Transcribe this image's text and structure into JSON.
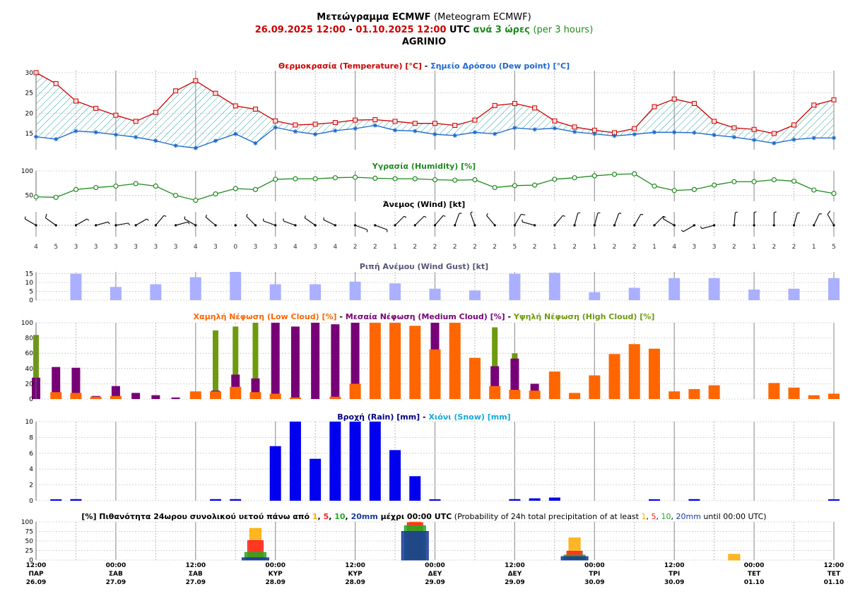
{
  "header": {
    "title_bold": "Μετεώγραμμα ECMWF",
    "title_plain": "(Meteogram ECMWF)",
    "date_from": "26.09.2025 12:00",
    "date_sep": "-",
    "date_to": "01.10.2025 12:00",
    "utc": "UTC",
    "step_gr": "ανά 3 ώρες",
    "step_en": "(per 3 hours)",
    "location": "AGRINIO"
  },
  "colors": {
    "temp": "#cc0000",
    "dew": "#1a66cc",
    "humidity": "#1f8a1f",
    "gust": "#aab0ff",
    "low_cloud": "#ff6600",
    "med_cloud": "#770077",
    "high_cloud": "#6e9a0f",
    "rain": "#0000ee",
    "snow": "#11aadd",
    "title_gray": "#555577",
    "p1": "#ffaa00",
    "p5": "#ff2222",
    "p10": "#22aa22",
    "p20": "#1a3a99"
  },
  "chart_data": [
    {
      "type": "line",
      "title_parts": [
        {
          "text": "Θερμοκρασία (Temperature) [°C]",
          "color": "#cc0000"
        },
        {
          "text": " - ",
          "color": "#000000"
        },
        {
          "text": "Σημείο Δρόσου (Dew point) [°C]",
          "color": "#1a66cc"
        }
      ],
      "ylim": [
        11,
        30.5
      ],
      "ticks": [
        15,
        20,
        25,
        30
      ],
      "series": [
        {
          "name": "Θερμοκρασία (Temperature) [°C]",
          "values": [
            30,
            27.3,
            23,
            21.2,
            19.5,
            18,
            20.2,
            25.5,
            28,
            24.9,
            21.8,
            21,
            18.1,
            17.1,
            17.3,
            17.7,
            18.3,
            18.4,
            18,
            17.5,
            17.5,
            17,
            18.3,
            21.9,
            22.4,
            21.3,
            18.1,
            16.6,
            15.8,
            15.2,
            16.2,
            21.6,
            23.5,
            22.4,
            18,
            16.4,
            16,
            15,
            17.1,
            22,
            23.3
          ]
        },
        {
          "name": "Σημείο Δρόσου (Dew point) [°C]",
          "values": [
            14.2,
            13.6,
            15.6,
            15.3,
            14.7,
            14.1,
            13.2,
            12,
            11.4,
            13.2,
            14.9,
            12.6,
            16.5,
            15.5,
            14.8,
            15.7,
            16.2,
            17,
            15.8,
            15.6,
            14.8,
            14.5,
            15.3,
            14.9,
            16.4,
            16,
            16.3,
            15.4,
            14.9,
            14.4,
            14.8,
            15.3,
            15.3,
            15.2,
            14.6,
            14.1,
            13.4,
            12.6,
            13.5,
            13.9,
            13.9
          ]
        }
      ]
    },
    {
      "type": "line",
      "title_parts": [
        {
          "text": "Υγρασία (Humidity) [%]",
          "color": "#1f8a1f"
        }
      ],
      "ylim": [
        38,
        100
      ],
      "ticks": [
        50,
        100
      ],
      "series": [
        {
          "name": "Υγρασία (Humidity) [%]",
          "values": [
            47,
            46,
            62,
            66,
            69,
            74,
            69,
            50,
            40,
            53,
            64,
            62,
            83,
            84,
            84,
            86,
            87,
            85,
            84,
            84,
            82,
            81,
            82,
            66,
            70,
            71,
            83,
            86,
            90,
            93,
            94,
            69,
            60,
            62,
            71,
            78,
            78,
            82,
            79,
            61,
            54
          ]
        }
      ]
    },
    {
      "type": "wind",
      "title_parts": [
        {
          "text": "Άνεμος (Wind) [kt]",
          "color": "#000000"
        }
      ],
      "speed_labels": [
        "4",
        "5",
        "3",
        "3",
        "3",
        "3",
        "3",
        "3",
        "4",
        "3",
        "0",
        "3",
        "3",
        "4",
        "3",
        "4",
        "2",
        "2",
        "1",
        "2",
        "2",
        "2",
        "2",
        "2",
        "5",
        "2",
        "1",
        "2",
        "1",
        "2",
        "2",
        "1",
        "4",
        "3",
        "3",
        "2",
        "1",
        "2",
        "2",
        "1",
        "5"
      ],
      "directions_deg": [
        300,
        305,
        60,
        75,
        80,
        60,
        40,
        75,
        300,
        310,
        0,
        315,
        290,
        290,
        305,
        295,
        110,
        110,
        45,
        45,
        40,
        20,
        340,
        320,
        30,
        285,
        40,
        15,
        15,
        20,
        30,
        45,
        300,
        240,
        255,
        5,
        0,
        0,
        15,
        25,
        330
      ]
    },
    {
      "type": "bar",
      "title_parts": [
        {
          "text": "Ριπή Ανέμου (Wind Gust) [kt]",
          "color": "#555577"
        }
      ],
      "ylim": [
        0,
        16
      ],
      "ticks": [
        0,
        5,
        10,
        15
      ],
      "series": [
        {
          "name": "Ριπή Ανέμου (Wind Gust) [kt]",
          "values": [
            15,
            7.5,
            9,
            13,
            16,
            9,
            9,
            10.5,
            9.5,
            6.5,
            5.5,
            15,
            15.5,
            4.5,
            7,
            12.5,
            12.5,
            6,
            6.5,
            12.5
          ]
        }
      ]
    },
    {
      "type": "bar",
      "title_parts": [
        {
          "text": "Χαμηλή Νέφωση (Low Cloud) [%]",
          "color": "#ff6600"
        },
        {
          "text": " - ",
          "color": "#000000"
        },
        {
          "text": "Μεσαία Νέφωση (Medium Cloud) [%]",
          "color": "#770077"
        },
        {
          "text": " - ",
          "color": "#000000"
        },
        {
          "text": "Υψηλή Νέφωση (High Cloud) [%]",
          "color": "#6e9a0f"
        }
      ],
      "ylim": [
        0,
        100
      ],
      "ticks": [
        0,
        20,
        40,
        60,
        80,
        100
      ],
      "series": [
        {
          "name": "Υψηλή Νέφωση (High Cloud) [%]",
          "values": [
            84,
            0,
            0,
            0,
            0,
            0,
            0,
            0,
            0,
            90,
            95,
            100,
            100,
            0,
            0,
            0,
            0,
            0,
            0,
            0,
            0,
            0,
            0,
            94,
            60,
            0,
            0,
            0,
            0,
            0,
            0,
            0,
            0,
            0,
            0,
            0,
            0,
            0,
            0,
            0,
            0
          ]
        },
        {
          "name": "Μεσαία Νέφωση (Medium Cloud) [%]",
          "values": [
            28,
            42,
            41,
            4,
            17,
            8,
            5,
            2,
            0,
            11,
            32,
            27,
            100,
            95,
            100,
            98,
            100,
            0,
            0,
            0,
            100,
            0,
            0,
            43,
            53,
            20,
            0,
            0,
            0,
            0,
            0,
            0,
            0,
            0,
            0,
            0,
            0,
            0,
            0,
            0,
            0
          ]
        },
        {
          "name": "Χαμηλή Νέφωση (Low Cloud) [%]",
          "values": [
            0,
            9,
            8,
            3,
            4,
            0,
            0,
            0,
            10,
            10,
            16,
            9,
            7,
            2,
            0,
            3,
            20,
            100,
            100,
            96,
            65,
            100,
            54,
            17,
            12,
            11,
            36,
            8,
            31,
            59,
            72,
            66,
            10,
            13,
            18,
            0,
            0,
            21,
            15,
            5,
            7
          ]
        }
      ]
    },
    {
      "type": "bar",
      "title_parts": [
        {
          "text": "Βροχή (Rain) [mm]",
          "color": "#000080"
        },
        {
          "text": " - ",
          "color": "#000000"
        },
        {
          "text": "Χιόνι (Snow) [mm]",
          "color": "#11aadd"
        }
      ],
      "ylim": [
        0,
        10
      ],
      "ticks": [
        0,
        2,
        4,
        6,
        8,
        10
      ],
      "series": [
        {
          "name": "Βροχή (Rain) [mm]",
          "values": [
            0,
            0.1,
            0.2,
            0,
            0,
            0,
            0,
            0,
            0,
            0.2,
            0.2,
            0,
            6.9,
            10,
            5.3,
            10,
            10,
            10,
            6.4,
            3.1,
            0.1,
            0,
            0,
            0,
            0.2,
            0.3,
            0.4,
            0,
            0,
            0,
            0,
            0.1,
            0,
            0.2,
            0,
            0,
            0,
            0,
            0,
            0,
            0.1
          ]
        },
        {
          "name": "Χιόνι (Snow) [mm]",
          "values": [
            0,
            0,
            0,
            0,
            0,
            0,
            0,
            0,
            0,
            0,
            0,
            0,
            0,
            0,
            0,
            0,
            0,
            0,
            0,
            0,
            0,
            0,
            0,
            0,
            0,
            0,
            0,
            0,
            0,
            0,
            0,
            0,
            0,
            0,
            0,
            0,
            0,
            0,
            0,
            0,
            0
          ]
        }
      ]
    },
    {
      "type": "bar",
      "title_parts": [
        {
          "text": "[%] Πιθανότητα 24ωρου συνολικού υετού πάνω από ",
          "color": "#000000",
          "bold": true
        },
        {
          "text": "1",
          "color": "#ffaa00",
          "bold": true
        },
        {
          "text": ", ",
          "color": "#000000",
          "bold": true
        },
        {
          "text": "5",
          "color": "#ff2222",
          "bold": true
        },
        {
          "text": ", ",
          "color": "#000000",
          "bold": true
        },
        {
          "text": "10",
          "color": "#22aa22",
          "bold": true
        },
        {
          "text": ", ",
          "color": "#000000",
          "bold": true
        },
        {
          "text": "20mm",
          "color": "#1a3a99",
          "bold": true
        },
        {
          "text": " μέχρι 00:00 UTC",
          "color": "#000000",
          "bold": true
        },
        {
          "text": " (Probability of 24h total precipitation of at least ",
          "color": "#000000",
          "bold": false
        },
        {
          "text": "1",
          "color": "#ffaa00",
          "bold": false
        },
        {
          "text": ", ",
          "color": "#000000",
          "bold": false
        },
        {
          "text": "5",
          "color": "#ff2222",
          "bold": false
        },
        {
          "text": ", ",
          "color": "#000000",
          "bold": false
        },
        {
          "text": "10",
          "color": "#22aa22",
          "bold": false
        },
        {
          "text": ", ",
          "color": "#000000",
          "bold": false
        },
        {
          "text": "20mm",
          "color": "#1a3a99",
          "bold": false
        },
        {
          "text": " until 00:00 UTC)",
          "color": "#000000",
          "bold": false
        }
      ],
      "ylim": [
        0,
        100
      ],
      "ticks": [
        0,
        25,
        50,
        75,
        100
      ],
      "categories": [
        "28.09 00:00",
        "29.09 00:00",
        "30.09 00:00",
        "01.10 00:00"
      ],
      "series": [
        {
          "name": "1mm",
          "values": [
            83,
            100,
            58,
            15
          ]
        },
        {
          "name": "5mm",
          "values": [
            51,
            98,
            23,
            0
          ]
        },
        {
          "name": "10mm",
          "values": [
            20,
            90,
            13,
            0
          ]
        },
        {
          "name": "20mm",
          "values": [
            6,
            75,
            9,
            0
          ]
        }
      ]
    }
  ],
  "x_axis": [
    {
      "time": "12:00",
      "day": "ΠΑΡ",
      "date": "26.09"
    },
    {
      "time": "00:00",
      "day": "ΣΑΒ",
      "date": "27.09"
    },
    {
      "time": "12:00",
      "day": "ΣΑΒ",
      "date": "27.09"
    },
    {
      "time": "00:00",
      "day": "ΚΥΡ",
      "date": "28.09"
    },
    {
      "time": "12:00",
      "day": "ΚΥΡ",
      "date": "28.09"
    },
    {
      "time": "00:00",
      "day": "ΔΕΥ",
      "date": "29.09"
    },
    {
      "time": "12:00",
      "day": "ΔΕΥ",
      "date": "29.09"
    },
    {
      "time": "00:00",
      "day": "ΤΡΙ",
      "date": "30.09"
    },
    {
      "time": "12:00",
      "day": "ΤΡΙ",
      "date": "30.09"
    },
    {
      "time": "00:00",
      "day": "ΤΕΤ",
      "date": "01.10"
    },
    {
      "time": "12:00",
      "day": "ΤΕΤ",
      "date": "01.10"
    }
  ]
}
